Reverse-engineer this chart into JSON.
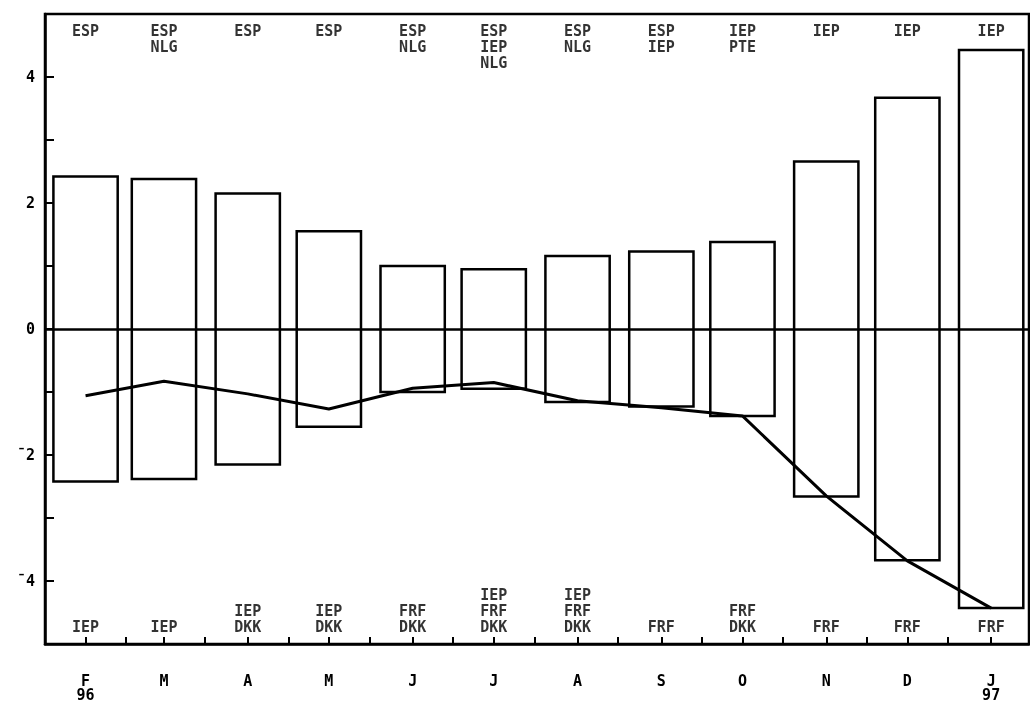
{
  "chart_data": {
    "type": "bar",
    "x": [
      "1996-02",
      "1996-03",
      "1996-04",
      "1996-05",
      "1996-06",
      "1996-07",
      "1996-08",
      "1996-09",
      "1996-10",
      "1996-11",
      "1996-12",
      "1997-01"
    ],
    "xlim": [
      "1996-01-17",
      "1997-01-15"
    ],
    "xticks": [
      {
        "value": "1996-02",
        "label": "F\n96"
      },
      {
        "value": "1996-02-16",
        "label": null
      },
      {
        "value": "1996-03",
        "label": "M"
      },
      {
        "value": "1996-03-16",
        "label": null
      },
      {
        "value": "1996-04",
        "label": "A"
      },
      {
        "value": "1996-04-16",
        "label": null
      },
      {
        "value": "1996-05",
        "label": "M"
      },
      {
        "value": "1996-05-16",
        "label": null
      },
      {
        "value": "1996-06",
        "label": "J"
      },
      {
        "value": "1996-06-16",
        "label": null
      },
      {
        "value": "1996-07",
        "label": "J"
      },
      {
        "value": "1996-07-16",
        "label": null
      },
      {
        "value": "1996-08",
        "label": "A"
      },
      {
        "value": "1996-08-16",
        "label": null
      },
      {
        "value": "1996-09",
        "label": "S"
      },
      {
        "value": "1996-09-16",
        "label": null
      },
      {
        "value": "1996-10",
        "label": "O"
      },
      {
        "value": "1996-10-16",
        "label": null
      },
      {
        "value": "1996-11",
        "label": "N"
      },
      {
        "value": "1996-11-16",
        "label": null
      },
      {
        "value": "1996-12",
        "label": "D"
      },
      {
        "value": "1996-12-16",
        "label": null
      },
      {
        "value": "1997-01",
        "label": "J\n97"
      }
    ],
    "ylim": [
      -5,
      5
    ],
    "yticks": [
      {
        "value": -4,
        "label": "¯4"
      },
      {
        "value": -3,
        "label": null
      },
      {
        "value": -2,
        "label": "¯2"
      },
      {
        "value": -1,
        "label": null
      },
      0,
      {
        "value": 1,
        "label": null
      },
      2,
      {
        "value": 3,
        "label": null
      },
      4
    ],
    "series": [
      {
        "color": "#000000",
        "base": [
          -2.42,
          -2.38,
          -2.15,
          -1.55,
          -1.0,
          -0.95,
          -1.16,
          -1.23,
          -1.38,
          -2.66,
          -3.67,
          -4.43
        ],
        "values": [
          4.84,
          4.76,
          4.3,
          3.1,
          2.0,
          1.9,
          2.32,
          2.46,
          2.76,
          5.32,
          7.34,
          8.86
        ]
      },
      {
        "type": "line",
        "color": "#000000",
        "values": [
          -1.06,
          -0.83,
          -1.03,
          -1.27,
          -0.94,
          -0.85,
          -1.14,
          -1.25,
          -1.38,
          -2.65,
          -3.68,
          -4.43
        ]
      }
    ],
    "marker": "none",
    "ref_lines": [
      {
        "axis": "y",
        "value": 0,
        "color": "#000000"
      }
    ],
    "annotations": [
      "ESP",
      "ESP\nNLG",
      "ESP",
      "ESP",
      "ESP\nNLG",
      "ESP\nIEP\nNLG",
      "ESP\nNLG",
      "ESP\nIEP",
      "IEP\nPTE",
      "IEP",
      "IEP",
      "IEP",
      "IEP",
      "IEP",
      "IEP\nDKK",
      "IEP\nDKK",
      "FRF\nDKK",
      "IEP\nFRF\nDKK",
      "IEP\nFRF\nDKK",
      "FRF",
      "FRF\nDKK",
      "FRF",
      "FRF",
      "FRF"
    ],
    "grid": false
  }
}
